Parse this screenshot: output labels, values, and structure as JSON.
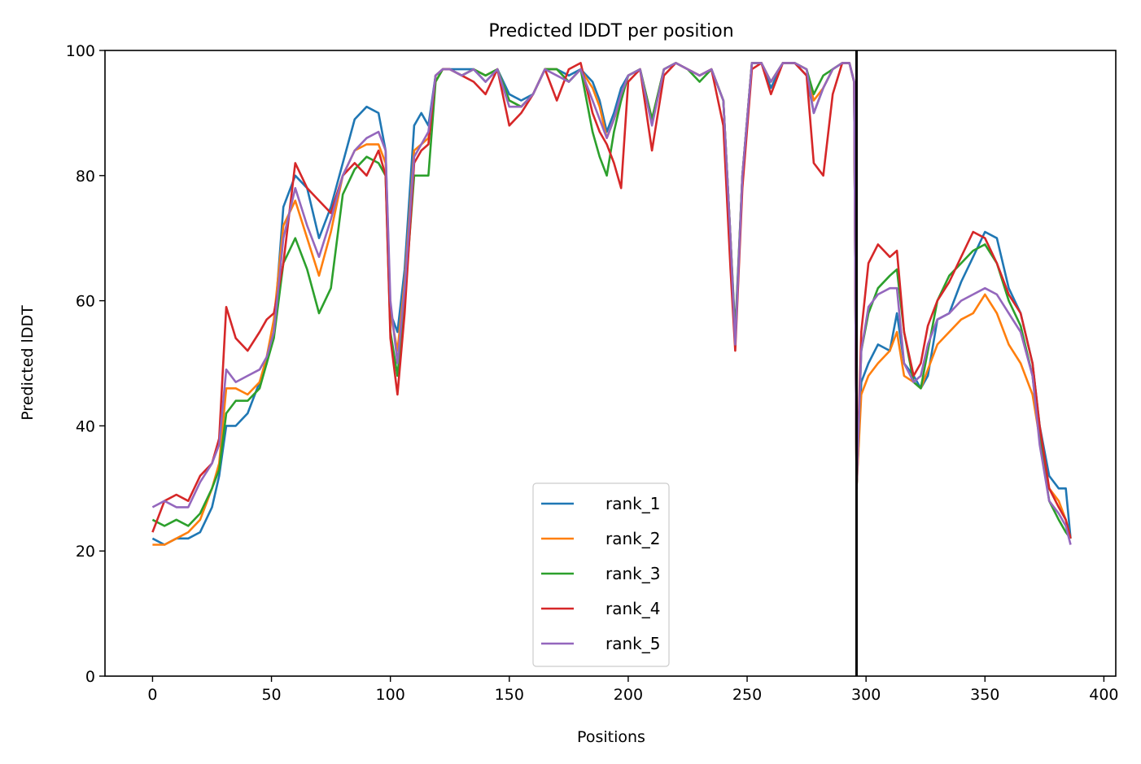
{
  "chart_data": {
    "type": "line",
    "title": "Predicted lDDT per position",
    "xlabel": "Positions",
    "ylabel": "Predicted lDDT",
    "xlim": [
      -20,
      405
    ],
    "ylim": [
      0,
      100
    ],
    "xticks": [
      0,
      50,
      100,
      150,
      200,
      250,
      300,
      350,
      400
    ],
    "yticks": [
      0,
      20,
      40,
      60,
      80,
      100
    ],
    "vline_x": 296,
    "legend_position": "lower-center",
    "grid": false,
    "series": [
      {
        "name": "rank_1",
        "color": "#1f77b4",
        "x": [
          0,
          5,
          10,
          15,
          20,
          25,
          28,
          31,
          35,
          40,
          45,
          48,
          51,
          55,
          60,
          65,
          70,
          75,
          80,
          85,
          90,
          95,
          98,
          100,
          103,
          106,
          110,
          113,
          116,
          119,
          122,
          125,
          130,
          135,
          140,
          145,
          150,
          155,
          160,
          165,
          170,
          175,
          180,
          185,
          188,
          191,
          194,
          197,
          200,
          205,
          210,
          215,
          220,
          225,
          230,
          235,
          240,
          243,
          245,
          248,
          252,
          256,
          260,
          265,
          270,
          275,
          278,
          282,
          286,
          290,
          293,
          295,
          296,
          298,
          301,
          305,
          310,
          313,
          316,
          320,
          323,
          326,
          330,
          335,
          340,
          345,
          350,
          355,
          360,
          365,
          370,
          373,
          377,
          381,
          384,
          386
        ],
        "values": [
          22,
          21,
          22,
          22,
          23,
          27,
          32,
          40,
          40,
          42,
          47,
          50,
          55,
          75,
          80,
          78,
          70,
          75,
          82,
          89,
          91,
          90,
          84,
          58,
          55,
          65,
          88,
          90,
          88,
          96,
          97,
          97,
          97,
          97,
          95,
          97,
          93,
          92,
          93,
          97,
          97,
          96,
          97,
          95,
          92,
          87,
          90,
          94,
          96,
          97,
          89,
          97,
          98,
          97,
          96,
          97,
          92,
          70,
          55,
          80,
          98,
          98,
          94,
          98,
          98,
          96,
          90,
          94,
          97,
          98,
          98,
          95,
          30,
          47,
          50,
          53,
          52,
          58,
          50,
          48,
          46,
          48,
          57,
          58,
          63,
          67,
          71,
          70,
          62,
          58,
          50,
          40,
          32,
          30,
          30,
          22
        ]
      },
      {
        "name": "rank_2",
        "color": "#ff7f0e",
        "x": [
          0,
          5,
          10,
          15,
          20,
          25,
          28,
          31,
          35,
          40,
          45,
          48,
          51,
          55,
          60,
          65,
          70,
          75,
          80,
          85,
          90,
          95,
          98,
          100,
          103,
          106,
          110,
          113,
          116,
          119,
          122,
          125,
          130,
          135,
          140,
          145,
          150,
          155,
          160,
          165,
          170,
          175,
          180,
          185,
          188,
          191,
          194,
          197,
          200,
          205,
          210,
          215,
          220,
          225,
          230,
          235,
          240,
          243,
          245,
          248,
          252,
          256,
          260,
          265,
          270,
          275,
          278,
          282,
          286,
          290,
          293,
          295,
          296,
          298,
          301,
          305,
          310,
          313,
          316,
          320,
          323,
          326,
          330,
          335,
          340,
          345,
          350,
          355,
          360,
          365,
          370,
          373,
          377,
          381,
          384,
          386
        ],
        "values": [
          21,
          21,
          22,
          23,
          25,
          30,
          34,
          46,
          46,
          45,
          47,
          51,
          57,
          72,
          76,
          70,
          64,
          71,
          80,
          84,
          85,
          85,
          82,
          58,
          52,
          63,
          84,
          85,
          86,
          95,
          97,
          97,
          96,
          97,
          96,
          97,
          92,
          91,
          93,
          97,
          97,
          95,
          97,
          94,
          91,
          86,
          89,
          92,
          96,
          97,
          89,
          97,
          98,
          97,
          96,
          97,
          92,
          70,
          54,
          80,
          98,
          98,
          95,
          98,
          98,
          97,
          92,
          94,
          97,
          98,
          98,
          95,
          30,
          45,
          48,
          50,
          52,
          55,
          48,
          47,
          46,
          49,
          53,
          55,
          57,
          58,
          61,
          58,
          53,
          50,
          45,
          38,
          30,
          28,
          25,
          22
        ]
      },
      {
        "name": "rank_3",
        "color": "#2ca02c",
        "x": [
          0,
          5,
          10,
          15,
          20,
          25,
          28,
          31,
          35,
          40,
          45,
          48,
          51,
          55,
          60,
          65,
          70,
          75,
          80,
          85,
          90,
          95,
          98,
          100,
          103,
          106,
          110,
          113,
          116,
          119,
          122,
          125,
          130,
          135,
          140,
          145,
          150,
          155,
          160,
          165,
          170,
          175,
          180,
          185,
          188,
          191,
          194,
          197,
          200,
          205,
          210,
          215,
          220,
          225,
          230,
          235,
          240,
          243,
          245,
          248,
          252,
          256,
          260,
          265,
          270,
          275,
          278,
          282,
          286,
          290,
          293,
          295,
          296,
          298,
          301,
          305,
          310,
          313,
          316,
          320,
          323,
          326,
          330,
          335,
          340,
          345,
          350,
          355,
          360,
          365,
          370,
          373,
          377,
          381,
          384,
          386
        ],
        "values": [
          25,
          24,
          25,
          24,
          26,
          30,
          33,
          42,
          44,
          44,
          46,
          50,
          54,
          66,
          70,
          65,
          58,
          62,
          77,
          81,
          83,
          82,
          80,
          55,
          48,
          60,
          80,
          80,
          80,
          95,
          97,
          97,
          96,
          97,
          96,
          97,
          92,
          91,
          93,
          97,
          97,
          95,
          97,
          87,
          83,
          80,
          87,
          92,
          96,
          97,
          89,
          97,
          98,
          97,
          95,
          97,
          92,
          70,
          54,
          80,
          98,
          98,
          95,
          98,
          98,
          97,
          93,
          96,
          97,
          98,
          98,
          95,
          30,
          52,
          58,
          62,
          64,
          65,
          55,
          47,
          46,
          52,
          60,
          64,
          66,
          68,
          69,
          66,
          60,
          56,
          48,
          38,
          28,
          25,
          23,
          22
        ]
      },
      {
        "name": "rank_4",
        "color": "#d62728",
        "x": [
          0,
          5,
          10,
          15,
          20,
          25,
          28,
          31,
          35,
          40,
          45,
          48,
          51,
          55,
          60,
          65,
          70,
          75,
          80,
          85,
          90,
          95,
          98,
          100,
          103,
          106,
          110,
          113,
          116,
          119,
          122,
          125,
          130,
          135,
          140,
          145,
          150,
          155,
          160,
          165,
          170,
          175,
          180,
          185,
          188,
          191,
          194,
          197,
          200,
          205,
          210,
          215,
          220,
          225,
          230,
          235,
          240,
          243,
          245,
          248,
          252,
          256,
          260,
          265,
          270,
          275,
          278,
          282,
          286,
          290,
          293,
          295,
          296,
          298,
          301,
          305,
          310,
          313,
          316,
          320,
          323,
          326,
          330,
          335,
          340,
          345,
          350,
          355,
          360,
          365,
          370,
          373,
          377,
          381,
          384,
          386
        ],
        "values": [
          23,
          28,
          29,
          28,
          32,
          34,
          38,
          59,
          54,
          52,
          55,
          57,
          58,
          66,
          82,
          78,
          76,
          74,
          80,
          82,
          80,
          84,
          80,
          54,
          45,
          58,
          82,
          84,
          85,
          96,
          97,
          97,
          96,
          95,
          93,
          97,
          88,
          90,
          93,
          97,
          92,
          97,
          98,
          90,
          87,
          85,
          82,
          78,
          95,
          97,
          84,
          96,
          98,
          97,
          96,
          97,
          88,
          65,
          52,
          78,
          97,
          98,
          93,
          98,
          98,
          96,
          82,
          80,
          93,
          98,
          98,
          95,
          30,
          55,
          66,
          69,
          67,
          68,
          55,
          48,
          50,
          56,
          60,
          63,
          67,
          71,
          70,
          66,
          61,
          58,
          50,
          40,
          30,
          27,
          25,
          22
        ]
      },
      {
        "name": "rank_5",
        "color": "#9467bd",
        "x": [
          0,
          5,
          10,
          15,
          20,
          25,
          28,
          31,
          35,
          40,
          45,
          48,
          51,
          55,
          60,
          65,
          70,
          75,
          80,
          85,
          90,
          95,
          98,
          100,
          103,
          106,
          110,
          113,
          116,
          119,
          122,
          125,
          130,
          135,
          140,
          145,
          150,
          155,
          160,
          165,
          170,
          175,
          180,
          185,
          188,
          191,
          194,
          197,
          200,
          205,
          210,
          215,
          220,
          225,
          230,
          235,
          240,
          243,
          245,
          248,
          252,
          256,
          260,
          265,
          270,
          275,
          278,
          282,
          286,
          290,
          293,
          295,
          296,
          298,
          301,
          305,
          310,
          313,
          316,
          320,
          323,
          326,
          330,
          335,
          340,
          345,
          350,
          355,
          360,
          365,
          370,
          373,
          377,
          381,
          384,
          386
        ],
        "values": [
          27,
          28,
          27,
          27,
          31,
          34,
          37,
          49,
          47,
          48,
          49,
          51,
          55,
          70,
          78,
          72,
          67,
          73,
          80,
          84,
          86,
          87,
          84,
          60,
          50,
          62,
          83,
          85,
          87,
          96,
          97,
          97,
          96,
          97,
          95,
          97,
          91,
          91,
          93,
          97,
          96,
          95,
          97,
          92,
          89,
          86,
          89,
          93,
          96,
          97,
          88,
          97,
          98,
          97,
          96,
          97,
          92,
          70,
          53,
          80,
          98,
          98,
          95,
          98,
          98,
          97,
          90,
          94,
          97,
          98,
          98,
          95,
          30,
          52,
          59,
          61,
          62,
          62,
          50,
          47,
          48,
          53,
          57,
          58,
          60,
          61,
          62,
          61,
          58,
          55,
          48,
          37,
          28,
          26,
          24,
          21
        ]
      }
    ]
  }
}
